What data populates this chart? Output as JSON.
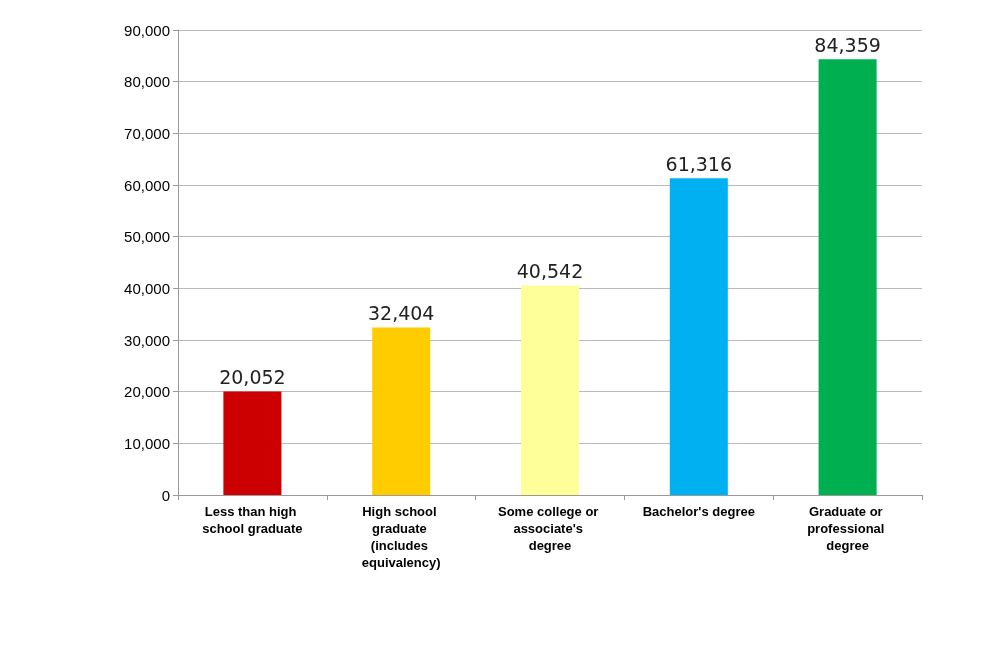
{
  "chart_data": {
    "type": "bar",
    "categories": [
      "Less than high school graduate",
      "High school graduate (includes equivalency)",
      "Some college or associate's degree",
      "Bachelor's degree",
      "Graduate or professional degree"
    ],
    "values": [
      20052,
      32404,
      40542,
      61316,
      84359
    ],
    "value_labels": [
      "20,052",
      "32,404",
      "40,542",
      "61,316",
      "84,359"
    ],
    "colors": [
      "#cc0000",
      "#ffcc00",
      "#ffff99",
      "#00b0f0",
      "#00b050"
    ],
    "ylim": [
      0,
      90000
    ],
    "yticks": [
      0,
      {
        "value": 10000,
        "label": "10,000"
      },
      {
        "value": 20000,
        "label": "20,000"
      },
      {
        "value": 30000,
        "label": "30,000"
      },
      {
        "value": 40000,
        "label": "40,000"
      },
      {
        "value": 50000,
        "label": "50,000"
      },
      {
        "value": 60000,
        "label": "60,000"
      },
      {
        "value": 70000,
        "label": "70,000"
      },
      {
        "value": 80000,
        "label": "80,000"
      },
      {
        "value": 90000,
        "label": "90,000"
      }
    ],
    "grid": "y"
  }
}
